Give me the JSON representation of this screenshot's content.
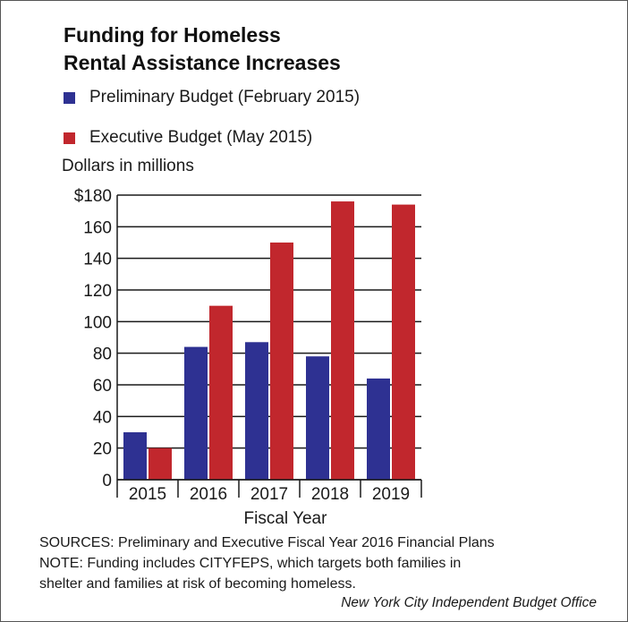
{
  "chart_data": {
    "type": "bar",
    "title_line1": "Funding for Homeless",
    "title_line2": "Rental Assistance Increases",
    "unit_label": "Dollars in millions",
    "xlabel": "Fiscal Year",
    "categories": [
      "2015",
      "2016",
      "2017",
      "2018",
      "2019"
    ],
    "series": [
      {
        "name": "Preliminary Budget (February 2015)",
        "color": "#2e3192",
        "values": [
          30,
          84,
          87,
          78,
          64
        ]
      },
      {
        "name": "Executive Budget (May 2015)",
        "color": "#c1272d",
        "values": [
          20,
          110,
          150,
          176,
          174
        ]
      }
    ],
    "ylim": [
      0,
      180
    ],
    "yticks": [
      0,
      20,
      40,
      60,
      80,
      100,
      120,
      140,
      160,
      180
    ],
    "ytick_labels": [
      "0",
      "20",
      "40",
      "60",
      "80",
      "100",
      "120",
      "140",
      "160",
      "$180"
    ],
    "grid": false,
    "legend_position": "top-left"
  },
  "footer": {
    "sources": "SOURCES: Preliminary and Executive Fiscal Year 2016 Financial Plans",
    "note_line1": "NOTE: Funding includes CITYFEPS, which targets both families in",
    "note_line2": "shelter and families at risk of becoming homeless.",
    "credit": "New York City Independent Budget Office"
  }
}
